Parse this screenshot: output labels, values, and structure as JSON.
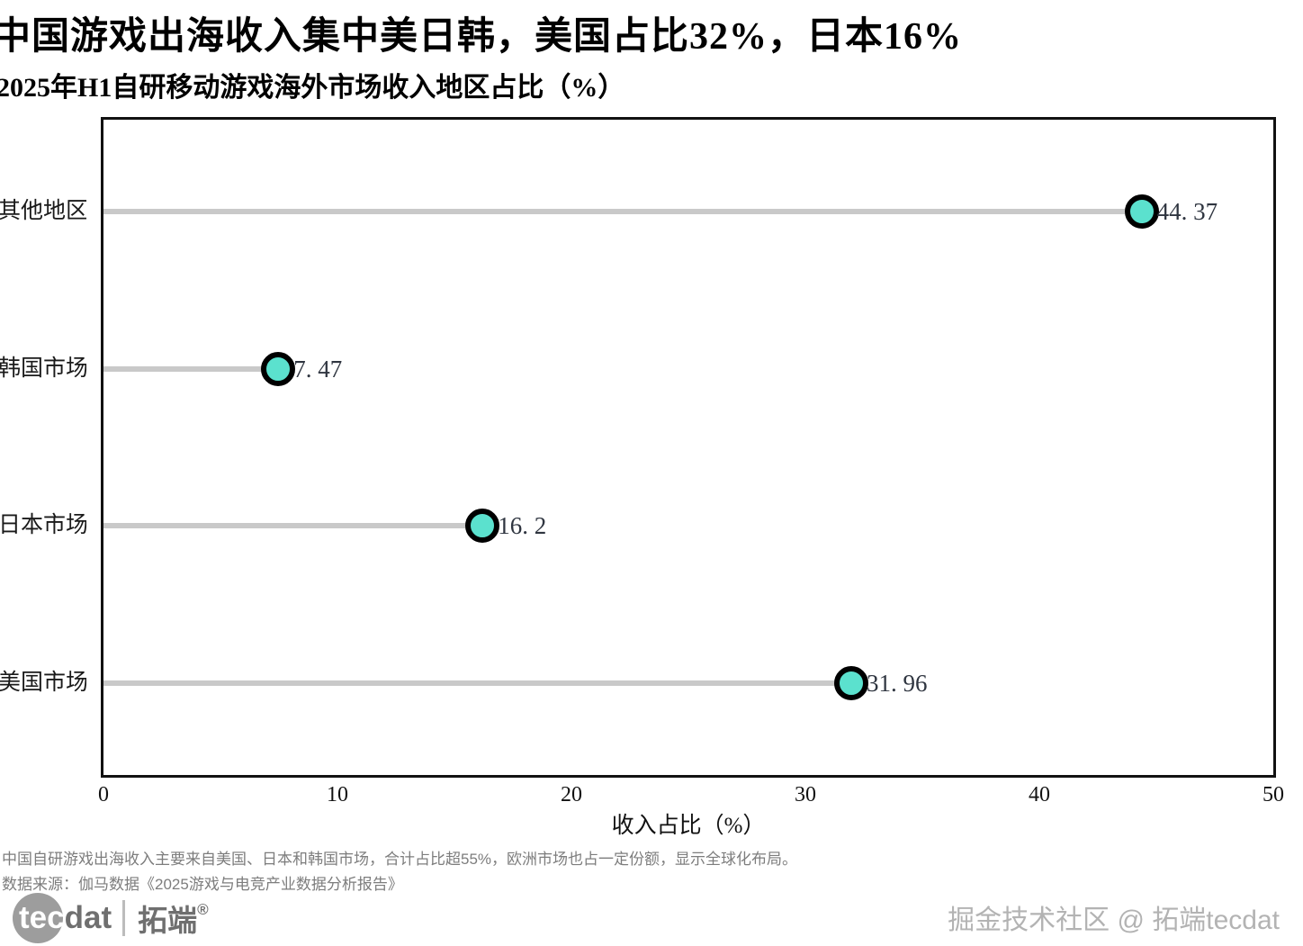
{
  "header": {
    "title": "中国游戏出海收入集中美日韩，美国占比32%，日本16%",
    "subtitle": "2025年H1自研移动游戏海外市场收入地区占比（%）"
  },
  "chart_data": {
    "type": "bar",
    "style": "horizontal-lollipop",
    "categories": [
      "其他地区",
      "韩国市场",
      "日本市场",
      "美国市场"
    ],
    "values": [
      44.37,
      7.47,
      16.2,
      31.96
    ],
    "value_labels": [
      "44. 37",
      "7. 47",
      "16. 2",
      "31. 96"
    ],
    "title": "2025年H1自研移动游戏海外市场收入地区占比（%）",
    "xlabel": "收入占比（%）",
    "ylabel": "",
    "xlim": [
      0,
      50
    ],
    "x_ticks": [
      0,
      10,
      20,
      30,
      40,
      50
    ],
    "grid": false,
    "legend": "none",
    "colors": {
      "dot_fill": "#5BE1CE",
      "dot_border": "#000000",
      "stem": "#C9C9C9",
      "plot_border": "#111111"
    }
  },
  "footnote": {
    "line1": "中国自研游戏出海收入主要来自美国、日本和韩国市场，合计占比超55%，欧洲市场也占一定份额，显示全球化布局。",
    "line2": "数据来源：伽马数据《2025游戏与电竞产业数据分析报告》"
  },
  "branding": {
    "logo_tec": "tec",
    "logo_dat": "dat",
    "logo_cn": "拓端",
    "logo_reg": "®",
    "watermark": "掘金技术社区 @ 拓端tecdat"
  }
}
